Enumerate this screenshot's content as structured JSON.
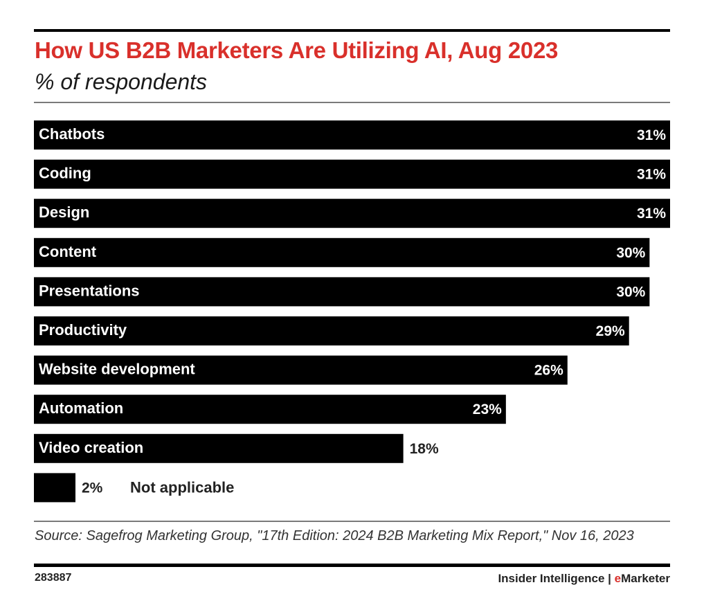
{
  "header": {
    "title": "How US B2B Marketers Are Utilizing AI, Aug 2023",
    "subtitle": "% of respondents"
  },
  "colors": {
    "title": "#d9302b",
    "bar": "#000000",
    "label_inside": "#ffffff",
    "label_outside": "#222222",
    "brand_accent": "#d9302b"
  },
  "chart_data": {
    "type": "bar",
    "orientation": "horizontal",
    "title": "How US B2B Marketers Are Utilizing AI, Aug 2023",
    "subtitle": "% of respondents",
    "xlabel": "",
    "ylabel": "",
    "unit": "%",
    "xlim": [
      0,
      31
    ],
    "grid": false,
    "legend": "none",
    "categories": [
      "Chatbots",
      "Coding",
      "Design",
      "Content",
      "Presentations",
      "Productivity",
      "Website development",
      "Automation",
      "Video creation",
      "Not applicable"
    ],
    "values": [
      31,
      31,
      31,
      30,
      30,
      29,
      26,
      23,
      18,
      2
    ],
    "value_labels": [
      "31%",
      "31%",
      "31%",
      "30%",
      "30%",
      "29%",
      "26%",
      "23%",
      "18%",
      "2%"
    ]
  },
  "footer": {
    "source": "Source: Sagefrog Marketing Group, \"17th Edition: 2024 B2B Marketing Mix Report,\" Nov 16, 2023",
    "chart_id": "283887",
    "brand_prefix": "Insider Intelligence | ",
    "brand_accent_letter": "e",
    "brand_suffix": "Marketer"
  }
}
